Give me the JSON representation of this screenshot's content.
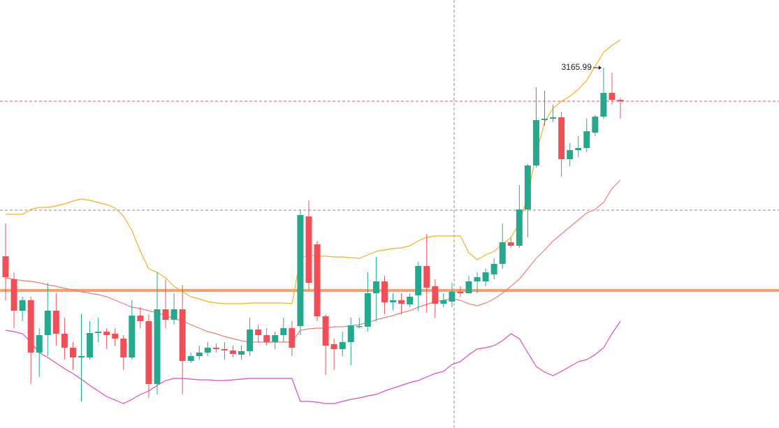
{
  "chart_data": {
    "type": "candlestick",
    "ylim": [
      2650,
      3263
    ],
    "up_color": "#26a88e",
    "down_color": "#ef5058",
    "open": [
      2896,
      2863,
      2818,
      2833,
      2758,
      2783,
      2818,
      2785,
      2765,
      2751,
      2751,
      2786,
      2788,
      2785,
      2778,
      2751,
      2811,
      2803,
      2713,
      2820,
      2805,
      2820,
      2746,
      2753,
      2758,
      2765,
      2763,
      2761,
      2755,
      2760,
      2791,
      2783,
      2773,
      2783,
      2793,
      2796,
      2953,
      2913,
      2810,
      2770,
      2763,
      2773,
      2795,
      2795,
      2843,
      2860,
      2830,
      2833,
      2827,
      2840,
      2882,
      2853,
      2828,
      2831,
      2845,
      2843,
      2860,
      2860,
      2870,
      2885,
      2916,
      2911,
      2963,
      3026,
      3091,
      3093,
      3095,
      3035,
      3048,
      3051,
      3073,
      3096,
      3130,
      3120
    ],
    "close": [
      2866,
      2818,
      2833,
      2758,
      2783,
      2818,
      2785,
      2765,
      2751,
      2753,
      2786,
      2788,
      2783,
      2778,
      2751,
      2811,
      2803,
      2713,
      2820,
      2805,
      2820,
      2746,
      2753,
      2758,
      2765,
      2763,
      2761,
      2756,
      2760,
      2791,
      2783,
      2773,
      2783,
      2793,
      2765,
      2955,
      2858,
      2810,
      2768,
      2763,
      2773,
      2797,
      2796,
      2843,
      2860,
      2830,
      2833,
      2828,
      2838,
      2882,
      2851,
      2828,
      2833,
      2845,
      2843,
      2860,
      2866,
      2873,
      2885,
      2916,
      2911,
      2963,
      3026,
      3091,
      3093,
      3095,
      3035,
      3048,
      3051,
      3075,
      3096,
      3130,
      3120,
      3118
    ],
    "high": [
      2943,
      2873,
      2838,
      2838,
      2793,
      2858,
      2843,
      2808,
      2773,
      2813,
      2803,
      2808,
      2793,
      2793,
      2783,
      2833,
      2823,
      2813,
      2873,
      2863,
      2843,
      2855,
      2758,
      2768,
      2773,
      2771,
      2773,
      2768,
      2768,
      2808,
      2798,
      2793,
      2788,
      2808,
      2803,
      2963,
      2976,
      2918,
      2813,
      2778,
      2788,
      2808,
      2808,
      2873,
      2895,
      2868,
      2843,
      2843,
      2843,
      2888,
      2928,
      2863,
      2843,
      2858,
      2853,
      2868,
      2873,
      2878,
      2893,
      2943,
      2923,
      2998,
      3028,
      3138,
      3133,
      3113,
      3103,
      3058,
      3068,
      3093,
      3098,
      3165.99,
      3159,
      3123
    ],
    "low": [
      2833,
      2793,
      2803,
      2713,
      2723,
      2753,
      2768,
      2748,
      2733,
      2688,
      2748,
      2773,
      2763,
      2768,
      2733,
      2748,
      2793,
      2693,
      2698,
      2793,
      2798,
      2698,
      2743,
      2748,
      2753,
      2758,
      2748,
      2751,
      2748,
      2753,
      2773,
      2768,
      2763,
      2773,
      2753,
      2783,
      2848,
      2803,
      2726,
      2733,
      2753,
      2740,
      2793,
      2788,
      2803,
      2813,
      2818,
      2813,
      2823,
      2818,
      2815,
      2808,
      2823,
      2823,
      2838,
      2843,
      2843,
      2853,
      2863,
      2878,
      2908,
      2908,
      2923,
      3023,
      3083,
      3088,
      3010,
      3025,
      3038,
      3045,
      3068,
      3093,
      3113,
      3093
    ],
    "annotation": "3165.99",
    "bands": [
      {
        "color": "#f2b01e",
        "values": [
          2956,
          2956,
          2956,
          2963,
          2966,
          2966,
          2968,
          2971,
          2975,
          2978,
          2976,
          2973,
          2970,
          2965,
          2953,
          2933,
          2903,
          2878,
          2873,
          2865,
          2853,
          2845,
          2838,
          2835,
          2831,
          2829,
          2828,
          2828,
          2828,
          2829,
          2829,
          2829,
          2829,
          2829,
          2828,
          2893,
          2898,
          2896,
          2896,
          2895,
          2895,
          2894,
          2893,
          2898,
          2903,
          2905,
          2907,
          2908,
          2911,
          2918,
          2923,
          2925,
          2925,
          2925,
          2925,
          2901,
          2891,
          2898,
          2903,
          2913,
          2923,
          2943,
          2983,
          3043,
          3088,
          3108,
          3118,
          3125,
          3135,
          3148,
          3168,
          3188,
          3198,
          3206
        ]
      },
      {
        "color": "#f07b78",
        "values": [
          2865,
          2863,
          2861,
          2860,
          2858,
          2855,
          2853,
          2850,
          2848,
          2845,
          2843,
          2841,
          2838,
          2833,
          2828,
          2823,
          2821,
          2818,
          2815,
          2811,
          2807,
          2803,
          2798,
          2793,
          2788,
          2785,
          2781,
          2778,
          2775,
          2773,
          2773,
          2773,
          2773,
          2773,
          2773,
          2790,
          2792,
          2793,
          2793,
          2795,
          2795,
          2796,
          2798,
          2801,
          2805,
          2808,
          2811,
          2815,
          2818,
          2823,
          2827,
          2831,
          2833,
          2835,
          2833,
          2828,
          2825,
          2829,
          2835,
          2843,
          2853,
          2863,
          2878,
          2893,
          2905,
          2918,
          2928,
          2938,
          2948,
          2958,
          2963,
          2973,
          2993,
          3005
        ]
      },
      {
        "color": "#d64cc6",
        "values": [
          2790,
          2788,
          2785,
          2773,
          2758,
          2751,
          2743,
          2735,
          2728,
          2720,
          2711,
          2703,
          2695,
          2690,
          2685,
          2691,
          2698,
          2703,
          2711,
          2718,
          2721,
          2721,
          2720,
          2719,
          2719,
          2718,
          2718,
          2719,
          2720,
          2721,
          2721,
          2721,
          2721,
          2721,
          2721,
          2688,
          2688,
          2687,
          2685,
          2685,
          2688,
          2691,
          2693,
          2696,
          2698,
          2703,
          2707,
          2711,
          2715,
          2718,
          2723,
          2728,
          2731,
          2741,
          2745,
          2755,
          2763,
          2765,
          2768,
          2775,
          2785,
          2778,
          2758,
          2738,
          2730,
          2725,
          2731,
          2738,
          2745,
          2748,
          2755,
          2765,
          2785,
          2803
        ]
      }
    ],
    "levels": [
      {
        "value": 2847,
        "color": "#f5a072",
        "style": "solid"
      },
      {
        "value": 3118,
        "color": "#e0525a",
        "style": "dashed"
      },
      {
        "value": 2962,
        "color": "#8a8a8a",
        "style": "dashed"
      }
    ]
  }
}
